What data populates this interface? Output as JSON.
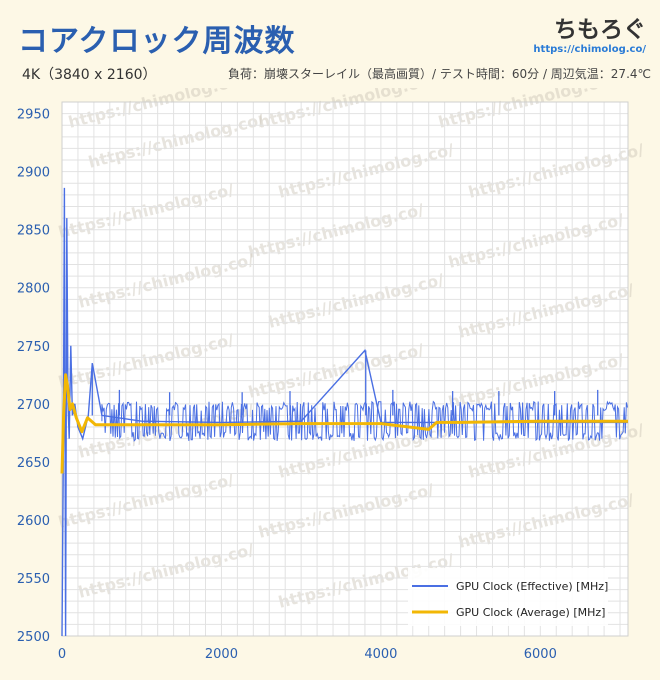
{
  "header": {
    "title": "コアクロック周波数",
    "resolution": "4K（3840 x 2160）",
    "conditions": "負荷：崩壊スターレイル（最高画質）/ テスト時間：60分 / 周辺気温：27.4℃"
  },
  "logo": {
    "name": "ちもろぐ",
    "url": "https://chimolog.co/"
  },
  "watermark": "https://chimolog.co/",
  "colors": {
    "effective": "#4a6fe3",
    "average": "#f2b705",
    "axis_text": "#2a5fb0",
    "grid": "#e2e2e2"
  },
  "chart_data": {
    "type": "line",
    "title": "コアクロック周波数",
    "xlabel": "",
    "ylabel": "",
    "xlim": [
      0,
      7100
    ],
    "ylim": [
      2500,
      2960
    ],
    "x_ticks": [
      0,
      2000,
      4000,
      6000
    ],
    "y_ticks": [
      2500,
      2550,
      2600,
      2650,
      2700,
      2750,
      2800,
      2850,
      2900,
      2950
    ],
    "legend_position": "bottom-right",
    "series": [
      {
        "name": "GPU Clock (Effective) [MHz]",
        "color": "#4a6fe3",
        "points": [
          [
            0,
            2500
          ],
          [
            15,
            2640
          ],
          [
            30,
            2886
          ],
          [
            45,
            2500
          ],
          [
            60,
            2860
          ],
          [
            75,
            2700
          ],
          [
            90,
            2670
          ],
          [
            110,
            2750
          ],
          [
            130,
            2690
          ],
          [
            160,
            2700
          ],
          [
            200,
            2680
          ],
          [
            260,
            2670
          ],
          [
            330,
            2690
          ],
          [
            380,
            2735
          ],
          [
            500,
            2690
          ],
          [
            1000,
            2685
          ],
          [
            2000,
            2684
          ],
          [
            3000,
            2685
          ],
          [
            3800,
            2746
          ],
          [
            4000,
            2684
          ],
          [
            5000,
            2684
          ],
          [
            6000,
            2684
          ],
          [
            7100,
            2684
          ]
        ],
        "band_low": 2668,
        "band_high": 2702,
        "spikes": [
          [
            380,
            2735
          ],
          [
            720,
            2712
          ],
          [
            1350,
            2710
          ],
          [
            2260,
            2710
          ],
          [
            2860,
            2711
          ],
          [
            3810,
            2746
          ],
          [
            4150,
            2712
          ],
          [
            4900,
            2711
          ],
          [
            5480,
            2711
          ],
          [
            6180,
            2711
          ],
          [
            6720,
            2712
          ]
        ]
      },
      {
        "name": "GPU Clock (Average) [MHz]",
        "color": "#f2b705",
        "points": [
          [
            0,
            2640
          ],
          [
            20,
            2690
          ],
          [
            45,
            2725
          ],
          [
            70,
            2715
          ],
          [
            100,
            2695
          ],
          [
            130,
            2700
          ],
          [
            180,
            2688
          ],
          [
            250,
            2676
          ],
          [
            320,
            2688
          ],
          [
            420,
            2682
          ],
          [
            1000,
            2682
          ],
          [
            2000,
            2682
          ],
          [
            3000,
            2683
          ],
          [
            4000,
            2683
          ],
          [
            4600,
            2678
          ],
          [
            4700,
            2684
          ],
          [
            5000,
            2684
          ],
          [
            6000,
            2685
          ],
          [
            7100,
            2685
          ]
        ]
      }
    ]
  }
}
